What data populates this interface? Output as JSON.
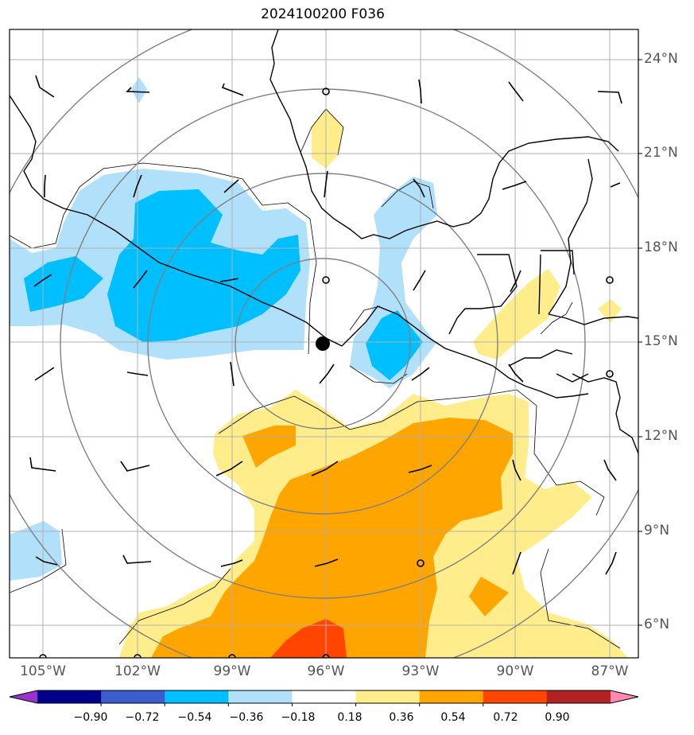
{
  "title": "2024100200 F036",
  "latitude_labels": [
    "24°N",
    "21°N",
    "18°N",
    "15°N",
    "12°N",
    "9°N",
    "6°N"
  ],
  "longitude_labels": [
    "105°W",
    "102°W",
    "99°W",
    "96°W",
    "93°W",
    "90°W",
    "87°W"
  ],
  "colorbar": {
    "tick_labels": [
      "−0.90",
      "−0.72",
      "−0.54",
      "−0.36",
      "−0.18",
      "0.18",
      "0.36",
      "0.54",
      "0.72",
      "0.90"
    ],
    "colors": [
      "#9932cc",
      "#00008b",
      "#3a5fcd",
      "#00bfff",
      "#b0e0fa",
      "#ffffff",
      "#ffec8b",
      "#ffa500",
      "#ff4500",
      "#b22222",
      "#ff88b0"
    ]
  },
  "map": {
    "extent_lon": [
      -106,
      -86
    ],
    "extent_lat": [
      5,
      25
    ],
    "center_marker": {
      "lon": -96,
      "lat": 15
    },
    "range_rings": 4,
    "grid": true
  }
}
